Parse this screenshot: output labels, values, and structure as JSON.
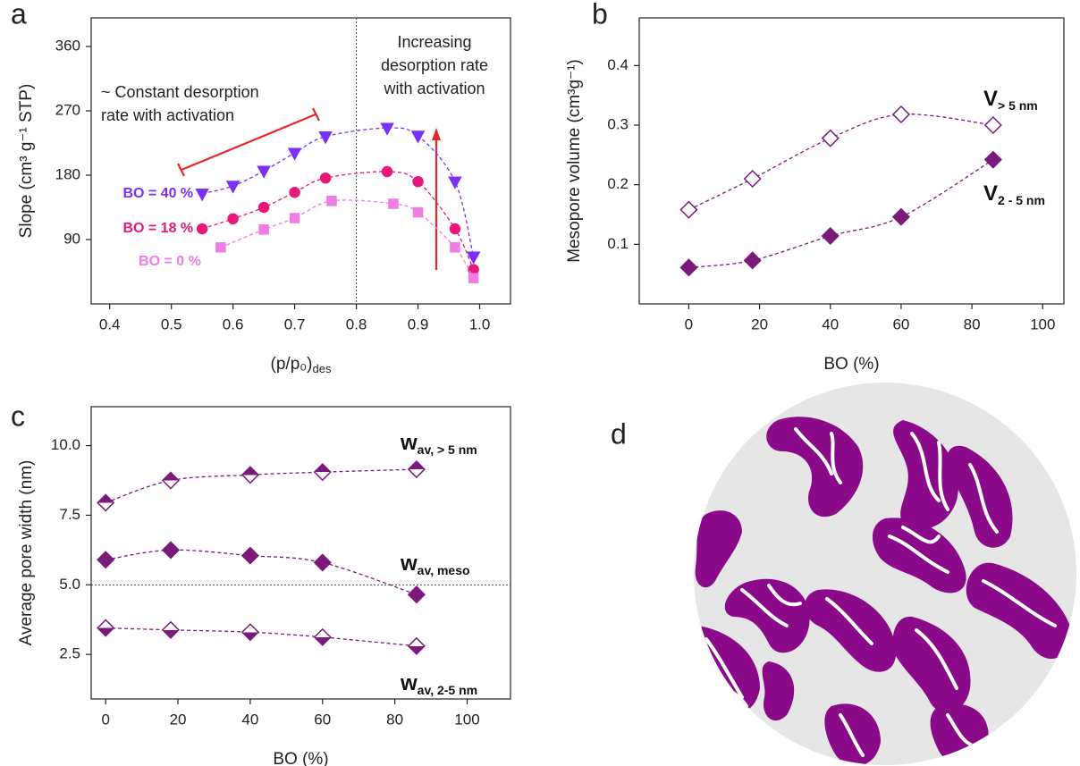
{
  "chart_data": [
    {
      "type": "line",
      "panel_label": "a",
      "xlabel": "(p/p₀)",
      "xlabel_subscript": "des",
      "ylabel": "Slope (cm³ g⁻¹ STP)",
      "xlim": [
        0.37,
        1.05
      ],
      "ylim": [
        0,
        400
      ],
      "xticks": [
        0.4,
        0.5,
        0.6,
        0.7,
        0.8,
        0.9,
        {
          "value": 1.0,
          "label": "1.0"
        }
      ],
      "yticks": [
        90,
        180,
        270,
        360
      ],
      "vline": 0.8,
      "annotations": [
        [
          "~ Constant desorption",
          "rate with activation"
        ],
        [
          "Increasing",
          "desorption rate",
          "with activation"
        ]
      ],
      "series": [
        {
          "name": "BO = 40 %",
          "color": "#7b2ff7",
          "marker": "triangle-down",
          "fill": "full",
          "x": [
            0.55,
            0.6,
            0.65,
            0.7,
            0.75,
            0.85,
            0.9,
            0.96,
            0.99
          ],
          "values": [
            154,
            165,
            186,
            211,
            234,
            246,
            235,
            171,
            66
          ]
        },
        {
          "name": "BO = 18 %",
          "color": "#e8187a",
          "marker": "circle",
          "fill": "full",
          "x": [
            0.55,
            0.6,
            0.65,
            0.7,
            0.75,
            0.85,
            0.9,
            0.96,
            0.99
          ],
          "values": [
            105,
            119,
            135,
            156,
            176,
            185,
            171,
            105,
            48
          ]
        },
        {
          "name": "BO = 0 %",
          "color": "#f07ce6",
          "marker": "square",
          "fill": "full",
          "x": [
            0.58,
            0.65,
            0.7,
            0.76,
            0.86,
            0.9,
            0.96,
            0.99
          ],
          "values": [
            79,
            104,
            120,
            144,
            140,
            128,
            79,
            36
          ]
        }
      ]
    },
    {
      "type": "line",
      "panel_label": "b",
      "xlabel": "BO (%)",
      "ylabel": "Mesopore volume (cm³g⁻¹)",
      "xlim": [
        -14,
        106
      ],
      "ylim": [
        0,
        0.48
      ],
      "xticks": [
        0,
        20,
        40,
        60,
        80,
        100
      ],
      "yticks": [
        0.1,
        0.2,
        0.3,
        0.4
      ],
      "x": [
        0,
        18,
        40,
        60,
        86
      ],
      "series": [
        {
          "name": "V",
          "name_subscript": "> 5 nm",
          "color": "#7b1a7b",
          "marker": "diamond",
          "fill": "open",
          "values": [
            0.158,
            0.21,
            0.278,
            0.318,
            0.3
          ]
        },
        {
          "name": "V",
          "name_subscript": "2 - 5 nm",
          "color": "#7b1a7b",
          "marker": "diamond",
          "fill": "full",
          "values": [
            0.061,
            0.073,
            0.114,
            0.146,
            0.242
          ]
        }
      ]
    },
    {
      "type": "line",
      "panel_label": "c",
      "xlabel": "BO (%)",
      "ylabel": "Average pore width (nm)",
      "xlim": [
        -4,
        112
      ],
      "ylim": [
        0.9,
        11.4
      ],
      "xticks": [
        0,
        20,
        40,
        60,
        80,
        100
      ],
      "yticks": [
        2.5,
        {
          "value": 5,
          "label": "5.0"
        },
        7.5,
        {
          "value": 10,
          "label": "10.0"
        }
      ],
      "hline": 5,
      "x": [
        0,
        18,
        40,
        60,
        86
      ],
      "series": [
        {
          "name": "w",
          "name_subscript": "av, > 5 nm",
          "color": "#7b1a7b",
          "marker": "diamond",
          "fill": "top",
          "values": [
            7.95,
            8.75,
            8.95,
            9.05,
            9.15
          ]
        },
        {
          "name": "w",
          "name_subscript": "av, meso",
          "color": "#7b1a7b",
          "marker": "diamond",
          "fill": "full",
          "values": [
            5.9,
            6.25,
            6.05,
            5.8,
            4.65
          ]
        },
        {
          "name": "w",
          "name_subscript": "av, 2-5 nm",
          "color": "#7b1a7b",
          "marker": "diamond",
          "fill": "bottom",
          "values": [
            3.45,
            3.38,
            3.3,
            3.12,
            2.8
          ]
        }
      ]
    }
  ],
  "illustration": {
    "panel_label": "d"
  }
}
